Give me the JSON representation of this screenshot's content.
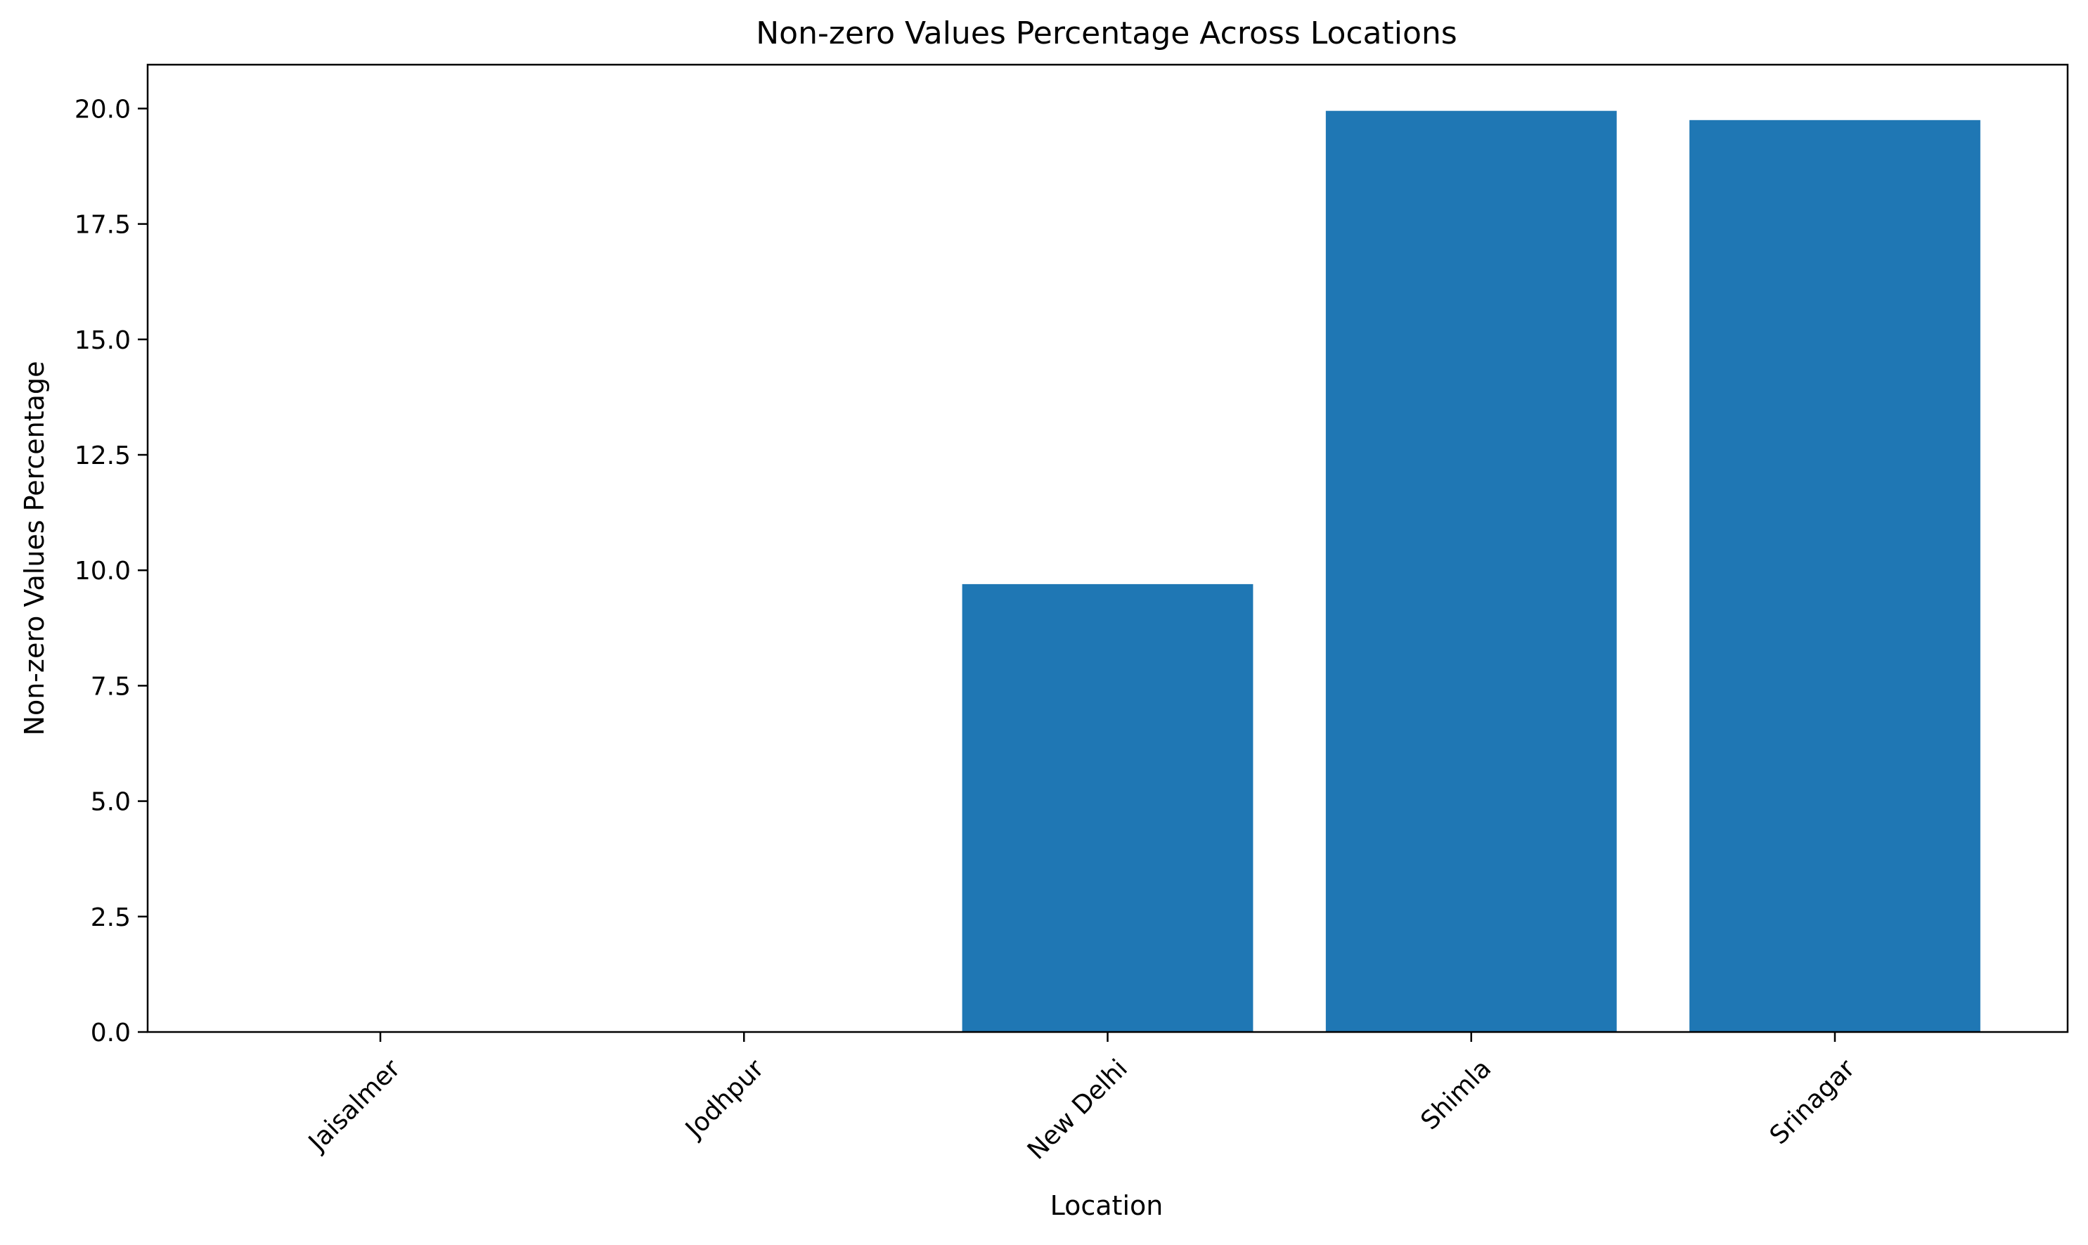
{
  "chart_data": {
    "type": "bar",
    "title": "Non-zero Values Percentage Across Locations",
    "xlabel": "Location",
    "ylabel": "Non-zero Values Percentage",
    "categories": [
      "Jaisalmer",
      "Jodhpur",
      "New Delhi",
      "Shimla",
      "Srinagar"
    ],
    "values": [
      0.0,
      0.0,
      9.7,
      19.95,
      19.75
    ],
    "ylim": [
      0,
      20.95
    ],
    "yticks": [
      "0.0",
      "2.5",
      "5.0",
      "7.5",
      "10.0",
      "12.5",
      "15.0",
      "17.5",
      "20.0"
    ],
    "bar_color": "#1f77b4",
    "grid": false,
    "legend": "none",
    "xtick_rotation": "45°"
  }
}
